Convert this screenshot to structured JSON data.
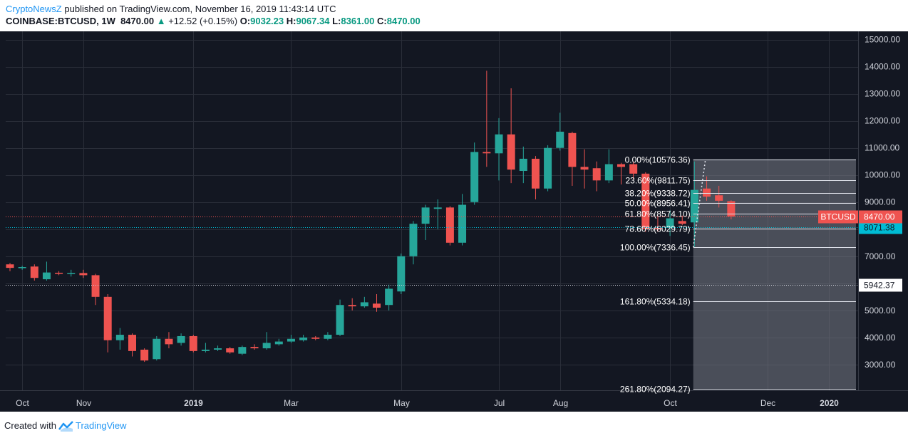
{
  "header": {
    "author": "CryptoNewsZ",
    "published_text": "published on TradingView.com, November 16, 2019 11:43:14 UTC",
    "symbol": "COINBASE:BTCUSD, 1W",
    "last": "8470.00",
    "arrow": "▲",
    "change": "+12.52 (+0.15%)",
    "o_label": "O:",
    "o_value": "9032.23",
    "h_label": "H:",
    "h_value": "9067.34",
    "l_label": "L:",
    "l_value": "8361.00",
    "c_label": "C:",
    "c_value": "8470.00"
  },
  "footer": {
    "created_with": "Created with",
    "brand": "TradingView"
  },
  "colors": {
    "background": "#131722",
    "up": "#26a69a",
    "down": "#ef5350",
    "grid": "#2a2e39",
    "axis_text": "#d1d4dc",
    "fib_line": "#e0e3eb",
    "last_price_line": "#ef5350",
    "marker_line": "#00bcd4",
    "shade": "#787b86"
  },
  "chart_data": {
    "type": "candlestick",
    "symbol_label": "BTCUSD",
    "ylim": [
      2050,
      15200
    ],
    "y_ticks": [
      3000,
      4000,
      5000,
      6000,
      7000,
      8000,
      9000,
      10000,
      11000,
      12000,
      13000,
      14000,
      15000
    ],
    "y_tick_labels": [
      "3000.00",
      "4000.00",
      "5000.00",
      "",
      "7000.00",
      "",
      "9000.00",
      "10000.00",
      "11000.00",
      "12000.00",
      "13000.00",
      "14000.00",
      "15000.00"
    ],
    "x_labels": [
      {
        "text": "Oct",
        "week": 1
      },
      {
        "text": "Nov",
        "week": 6
      },
      {
        "text": "2019",
        "week": 15
      },
      {
        "text": "Mar",
        "week": 23
      },
      {
        "text": "May",
        "week": 32
      },
      {
        "text": "Jul",
        "week": 40
      },
      {
        "text": "Aug",
        "week": 45
      },
      {
        "text": "Oct",
        "week": 54
      },
      {
        "text": "Dec",
        "week": 62
      },
      {
        "text": "2020",
        "week": 67
      }
    ],
    "candles": [
      [
        6700,
        6570,
        6750,
        6450
      ],
      [
        6560,
        6600,
        6650,
        6500
      ],
      [
        6620,
        6200,
        6700,
        6100
      ],
      [
        6150,
        6400,
        6800,
        6100
      ],
      [
        6390,
        6350,
        6450,
        6300
      ],
      [
        6360,
        6380,
        6500,
        6250
      ],
      [
        6380,
        6300,
        6500,
        6200
      ],
      [
        6300,
        5500,
        6350,
        5200
      ],
      [
        5500,
        3900,
        5600,
        3450
      ],
      [
        3900,
        4100,
        4350,
        3550
      ],
      [
        4100,
        3500,
        4150,
        3300
      ],
      [
        3550,
        3150,
        3600,
        3100
      ],
      [
        3200,
        3950,
        4050,
        3150
      ],
      [
        3950,
        3750,
        4200,
        3600
      ],
      [
        3800,
        4050,
        4150,
        3700
      ],
      [
        4050,
        3500,
        4100,
        3450
      ],
      [
        3500,
        3550,
        3800,
        3450
      ],
      [
        3550,
        3600,
        3700,
        3500
      ],
      [
        3600,
        3450,
        3650,
        3400
      ],
      [
        3400,
        3650,
        3700,
        3350
      ],
      [
        3650,
        3600,
        3750,
        3550
      ],
      [
        3600,
        3800,
        4200,
        3550
      ],
      [
        3750,
        3850,
        3950,
        3700
      ],
      [
        3850,
        3950,
        4100,
        3800
      ],
      [
        3900,
        4000,
        4100,
        3850
      ],
      [
        4000,
        3950,
        4050,
        3900
      ],
      [
        3950,
        4100,
        4200,
        3900
      ],
      [
        4100,
        5200,
        5400,
        4050
      ],
      [
        5200,
        5150,
        5450,
        5000
      ],
      [
        5150,
        5300,
        5500,
        5100
      ],
      [
        5250,
        5100,
        5600,
        4950
      ],
      [
        5200,
        5800,
        5950,
        5000
      ],
      [
        5700,
        7000,
        7100,
        5600
      ],
      [
        7000,
        8200,
        8300,
        6700
      ],
      [
        8200,
        8800,
        8900,
        7600
      ],
      [
        8750,
        8800,
        9100,
        8000
      ],
      [
        8800,
        7500,
        8850,
        7400
      ],
      [
        7500,
        8900,
        9300,
        7400
      ],
      [
        9000,
        10850,
        11200,
        8900
      ],
      [
        10850,
        10800,
        13850,
        10300
      ],
      [
        10800,
        11500,
        12100,
        9800
      ],
      [
        11500,
        10200,
        13200,
        9700
      ],
      [
        10150,
        10600,
        11050,
        9700
      ],
      [
        10600,
        9500,
        10700,
        9100
      ],
      [
        9500,
        11000,
        11100,
        9400
      ],
      [
        11000,
        11600,
        12300,
        10900
      ],
      [
        11550,
        10300,
        11600,
        9600
      ],
      [
        10300,
        10200,
        10950,
        9500
      ],
      [
        10250,
        9800,
        10500,
        9400
      ],
      [
        9800,
        10400,
        10950,
        9700
      ],
      [
        10400,
        10300,
        10450,
        9650
      ],
      [
        10400,
        10050,
        10500,
        9850
      ],
      [
        10050,
        8000,
        10100,
        7900
      ],
      [
        8050,
        8000,
        8500,
        7900
      ],
      [
        8050,
        8400,
        8700,
        7750
      ],
      [
        8300,
        8200,
        8500,
        8150
      ],
      [
        8250,
        9450,
        10500,
        7350
      ],
      [
        9500,
        9200,
        9950,
        9050
      ],
      [
        9250,
        9050,
        9600,
        8800
      ],
      [
        9032.23,
        8470,
        9067.34,
        8361
      ]
    ],
    "last_price": {
      "value": 8470,
      "label": "8470.00",
      "tag": "BTCUSD"
    },
    "marker_lines": [
      {
        "value": 8071.38,
        "label": "8071.38"
      },
      {
        "value": 5942.37,
        "label": "5942.37"
      }
    ],
    "fibonacci": [
      {
        "value": 10576.36,
        "label": "0.00%(10576.36)"
      },
      {
        "value": 9811.75,
        "label": "23.60%(9811.75)"
      },
      {
        "value": 9338.72,
        "label": "38.20%(9338.72)"
      },
      {
        "value": 8956.41,
        "label": "50.00%(8956.41)"
      },
      {
        "value": 8574.1,
        "label": "61.80%(8574.10)"
      },
      {
        "value": 8029.79,
        "label": "78.60%(8029.79)"
      },
      {
        "value": 7336.45,
        "label": "100.00%(7336.45)"
      },
      {
        "value": 5334.18,
        "label": "161.80%(5334.18)"
      },
      {
        "value": 2094.27,
        "label": "261.80%(2094.27)"
      }
    ],
    "fib_anchor_low": 7336.45,
    "fib_anchor_high": 10576.36
  }
}
